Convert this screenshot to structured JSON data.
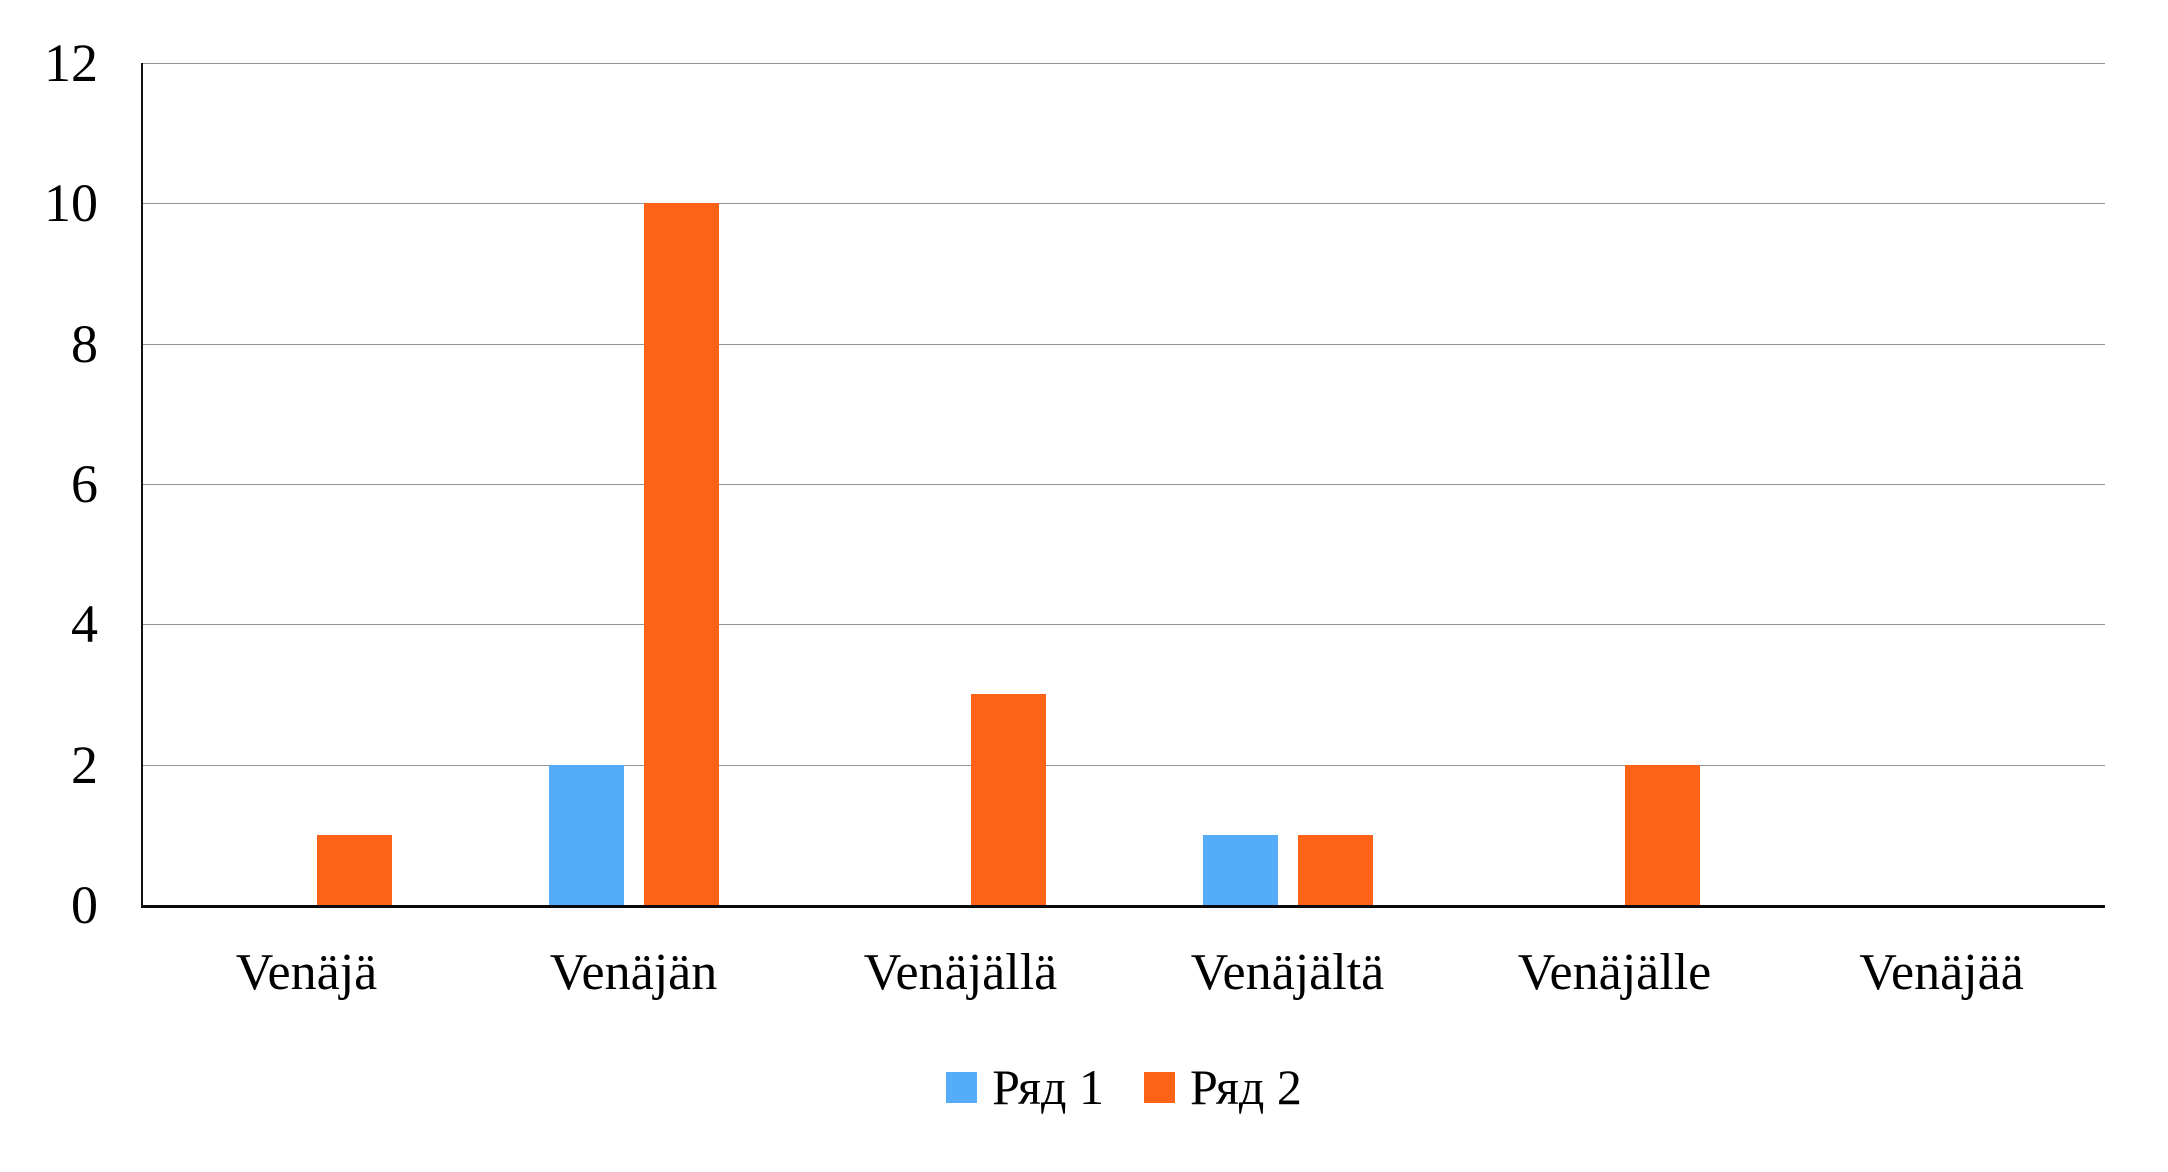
{
  "chart_data": {
    "type": "bar",
    "title": "",
    "xlabel": "",
    "ylabel": "",
    "categories": [
      "Venäjä",
      "Venäjän",
      "Venäjällä",
      "Venäjältä",
      "Venäjälle",
      "Venäjää"
    ],
    "series": [
      {
        "name": "Ряд 1",
        "color": "#55ADFA",
        "values": [
          0,
          2,
          0,
          1,
          0,
          0
        ]
      },
      {
        "name": "Ряд 2",
        "color": "#FC6317",
        "values": [
          1,
          10,
          3,
          1,
          2,
          0
        ]
      }
    ],
    "ylim": [
      0,
      12
    ],
    "yticks": [
      0,
      2,
      4,
      6,
      8,
      10,
      12
    ],
    "grid": true,
    "legend_position": "bottom"
  },
  "colors": {
    "background": "#FFFFFF",
    "gridline": "#949494",
    "axis": "#0A0A0A",
    "text": "#000000",
    "series1": "#55ADFA",
    "series2": "#FC6317"
  }
}
